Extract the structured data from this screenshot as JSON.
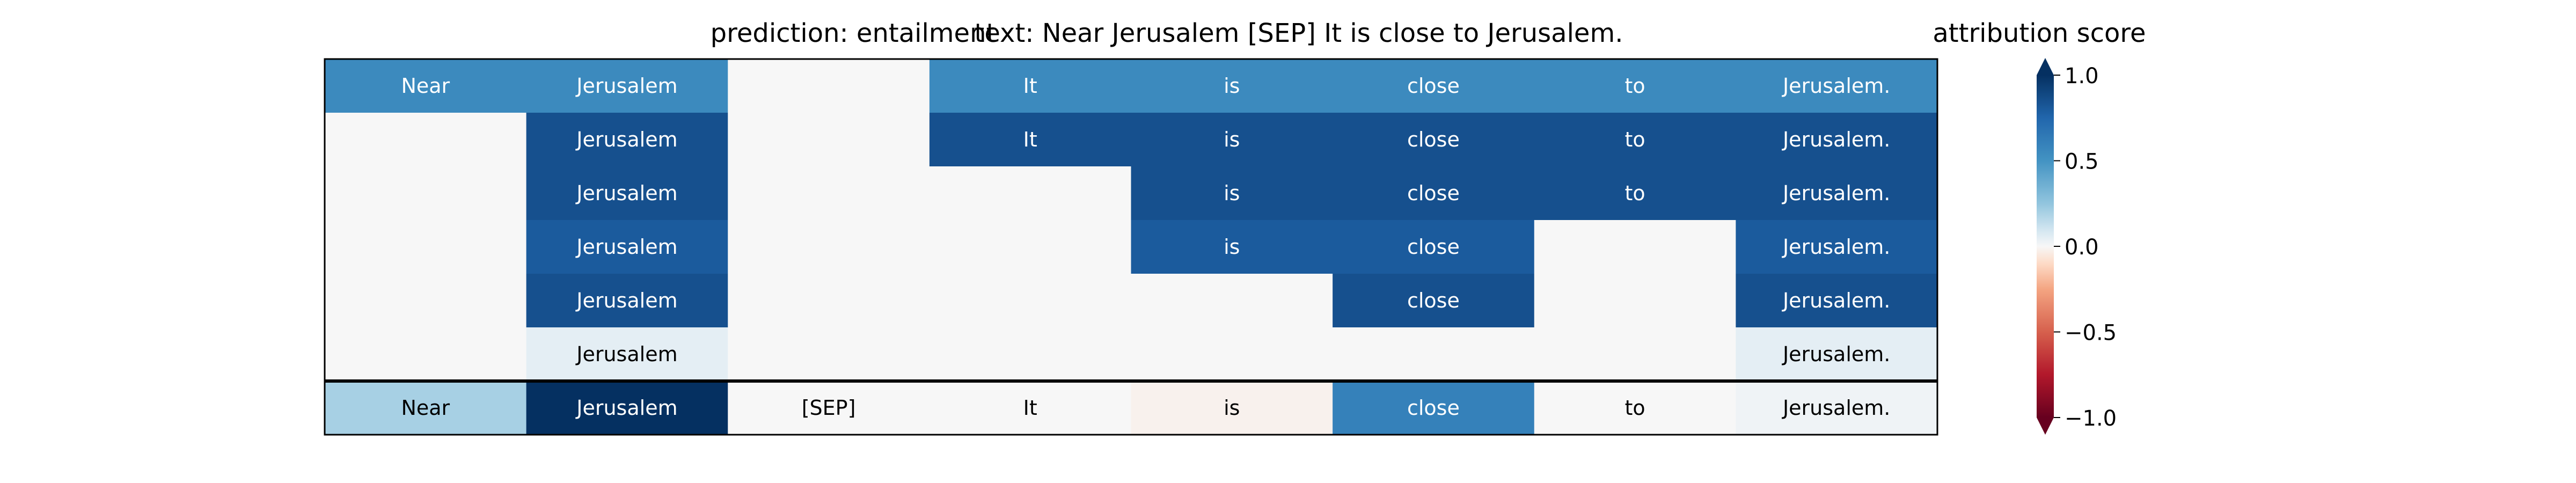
{
  "chart_data": {
    "type": "heatmap",
    "title_prediction": "prediction:  entailment",
    "title_text": "text:  Near Jerusalem [SEP] It is close to Jerusalem.",
    "colorbar": {
      "title": "attribution score",
      "range": [
        -1.0,
        1.0
      ],
      "ticks": [
        1.0,
        0.5,
        0.0,
        -0.5,
        -1.0
      ],
      "tick_labels": [
        "1.0",
        "0.5",
        "0.0",
        "−0.5",
        "−1.0"
      ],
      "colormap": "RdBu",
      "extend": "both"
    },
    "tokens": [
      "Near",
      "Jerusalem",
      "[SEP]",
      "It",
      "is",
      "close",
      "to",
      "Jerusalem."
    ],
    "layers": [
      [
        0.55,
        0.55,
        0.0,
        0.55,
        0.55,
        0.55,
        0.55,
        0.55
      ],
      [
        0.0,
        0.85,
        0.0,
        0.85,
        0.85,
        0.85,
        0.85,
        0.85
      ],
      [
        0.0,
        0.85,
        0.0,
        0.0,
        0.85,
        0.85,
        0.85,
        0.85
      ],
      [
        0.0,
        0.8,
        0.0,
        0.0,
        0.8,
        0.8,
        0.0,
        0.8
      ],
      [
        0.0,
        0.85,
        0.0,
        0.0,
        0.0,
        0.85,
        0.0,
        0.85
      ],
      [
        0.0,
        0.05,
        0.0,
        0.0,
        0.0,
        0.0,
        0.0,
        0.05
      ]
    ],
    "layer_token_visible": [
      [
        true,
        true,
        false,
        true,
        true,
        true,
        true,
        true
      ],
      [
        false,
        true,
        false,
        true,
        true,
        true,
        true,
        true
      ],
      [
        false,
        true,
        false,
        false,
        true,
        true,
        true,
        true
      ],
      [
        false,
        true,
        false,
        false,
        true,
        true,
        false,
        true
      ],
      [
        false,
        true,
        false,
        false,
        false,
        true,
        false,
        true
      ],
      [
        false,
        true,
        false,
        false,
        false,
        false,
        false,
        true
      ]
    ],
    "summary": [
      0.2,
      1.0,
      0.0,
      0.0,
      -0.02,
      0.6,
      0.0,
      0.02
    ]
  }
}
